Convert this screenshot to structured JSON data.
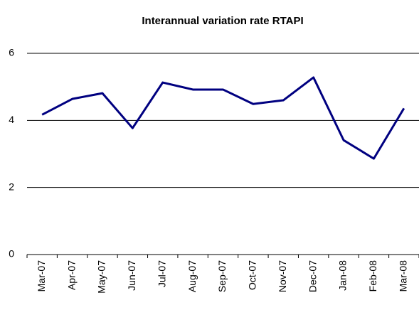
{
  "chart_data": {
    "type": "line",
    "title": "Interannual variation rate RTAPI",
    "categories": [
      "Mar-07",
      "Apr-07",
      "May-07",
      "Jun-07",
      "Jul-07",
      "Aug-07",
      "Sep-07",
      "Oct-07",
      "Nov-07",
      "Dec-07",
      "Jan-08",
      "Feb-08",
      "Mar-08"
    ],
    "series": [
      {
        "name": "RTAPI",
        "color": "#000080",
        "values": [
          4.17,
          4.64,
          4.81,
          3.77,
          5.13,
          4.92,
          4.92,
          4.49,
          4.6,
          5.28,
          3.41,
          2.86,
          4.36
        ]
      }
    ],
    "ylim": [
      0,
      6
    ],
    "yticks": [
      0,
      2,
      4,
      6
    ],
    "grid": true
  }
}
